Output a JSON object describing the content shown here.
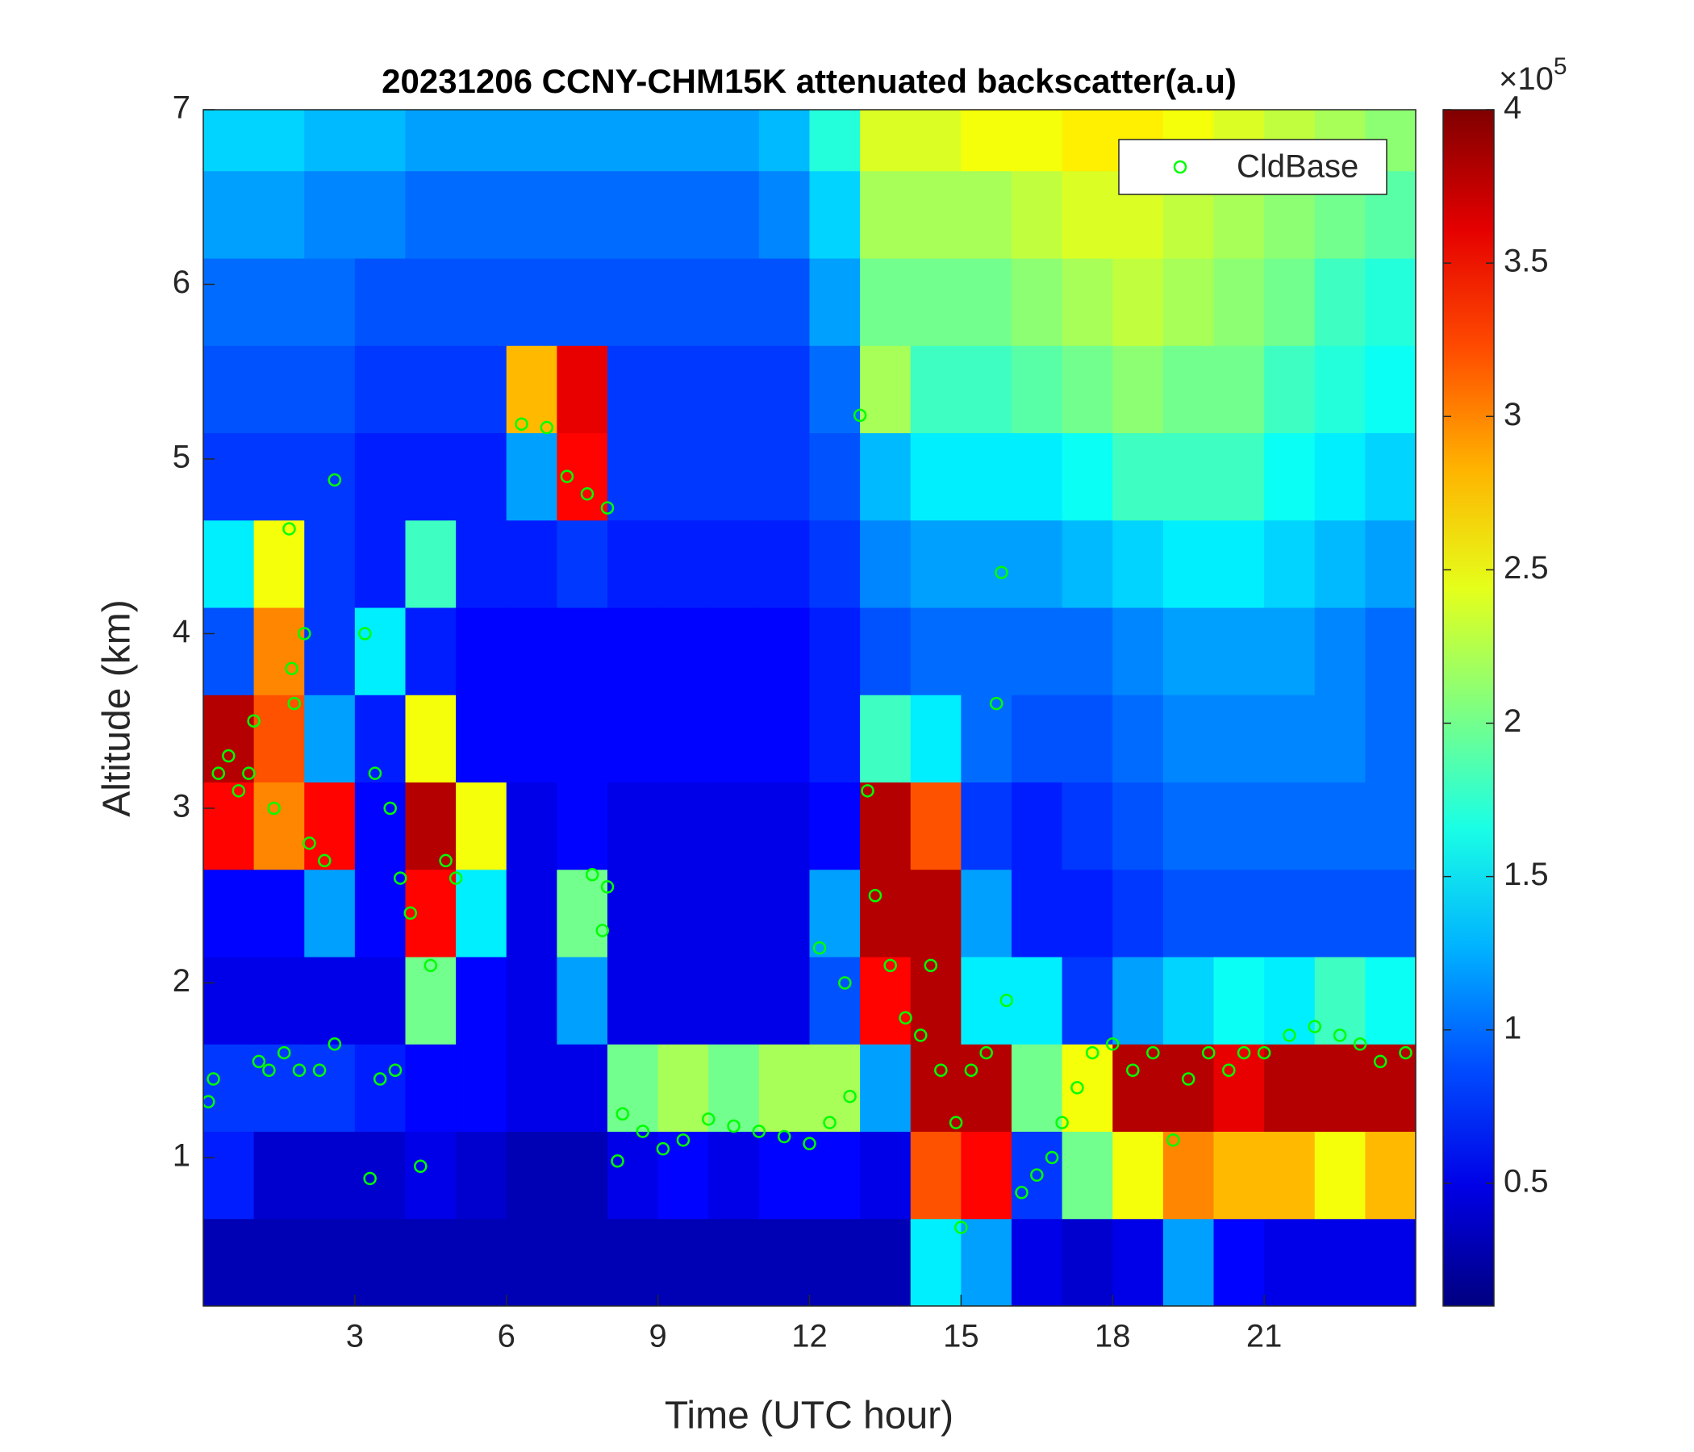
{
  "chart_data": {
    "type": "heatmap",
    "title": "20231206 CCNY-CHM15K attenuated backscatter(a.u)",
    "xlabel": "Time (UTC hour)",
    "ylabel": "Altitude (km)",
    "xlim": [
      0,
      24
    ],
    "ylim": [
      0.15,
      7
    ],
    "xticks": [
      3,
      6,
      9,
      12,
      15,
      18,
      21
    ],
    "yticks": [
      1,
      2,
      3,
      4,
      5,
      6,
      7
    ],
    "colormap": "jet",
    "colorbar": {
      "lim": [
        0.1,
        4
      ],
      "ticks": [
        0.5,
        1,
        1.5,
        2,
        2.5,
        3,
        3.5,
        4
      ],
      "multiplier_label": "×10",
      "multiplier_exponent": "5"
    },
    "x": [
      0.5,
      1.5,
      2.5,
      3.5,
      4.5,
      5.5,
      6.5,
      7.5,
      8.5,
      9.5,
      10.5,
      11.5,
      12.5,
      13.5,
      14.5,
      15.5,
      16.5,
      17.5,
      18.5,
      19.5,
      20.5,
      21.5,
      22.5,
      23.5
    ],
    "y": [
      0.4,
      0.9,
      1.4,
      1.9,
      2.4,
      2.9,
      3.4,
      3.9,
      4.4,
      4.9,
      5.4,
      5.9,
      6.4,
      6.9
    ],
    "z": [
      [
        0.3,
        0.3,
        0.3,
        0.3,
        0.3,
        0.3,
        0.3,
        0.3,
        0.3,
        0.3,
        0.3,
        0.3,
        0.3,
        0.3,
        1.5,
        1.2,
        0.5,
        0.4,
        0.5,
        1.2,
        0.6,
        0.5,
        0.5,
        0.5
      ],
      [
        0.7,
        0.4,
        0.4,
        0.4,
        0.5,
        0.4,
        0.3,
        0.3,
        0.5,
        0.6,
        0.5,
        0.6,
        0.6,
        0.5,
        3.2,
        3.5,
        0.8,
        2.0,
        2.5,
        3.0,
        2.8,
        2.8,
        2.5,
        2.8
      ],
      [
        0.8,
        0.8,
        0.8,
        0.7,
        0.6,
        0.6,
        0.5,
        0.5,
        2.0,
        2.2,
        2.0,
        2.2,
        2.2,
        1.2,
        3.8,
        3.8,
        2.0,
        2.5,
        3.8,
        3.8,
        3.6,
        3.8,
        3.8,
        3.8
      ],
      [
        0.5,
        0.5,
        0.5,
        0.5,
        2.0,
        0.6,
        0.5,
        1.2,
        0.5,
        0.5,
        0.5,
        0.5,
        0.9,
        3.5,
        3.8,
        1.5,
        1.5,
        0.8,
        1.2,
        1.4,
        1.6,
        1.5,
        1.8,
        1.6
      ],
      [
        0.6,
        0.6,
        1.2,
        0.6,
        3.5,
        1.5,
        0.5,
        2.0,
        0.5,
        0.5,
        0.5,
        0.5,
        1.2,
        3.8,
        3.8,
        1.2,
        0.7,
        0.7,
        0.8,
        0.9,
        0.9,
        0.9,
        0.9,
        0.9
      ],
      [
        3.5,
        3.0,
        3.5,
        0.6,
        3.8,
        2.5,
        0.5,
        0.6,
        0.5,
        0.5,
        0.5,
        0.5,
        0.6,
        3.8,
        3.2,
        0.8,
        0.7,
        0.8,
        0.9,
        1.0,
        1.0,
        1.0,
        1.0,
        1.0
      ],
      [
        3.8,
        3.2,
        1.2,
        0.7,
        2.5,
        0.6,
        0.6,
        0.6,
        0.6,
        0.6,
        0.6,
        0.6,
        0.7,
        1.8,
        1.5,
        1.0,
        0.9,
        0.9,
        1.0,
        1.1,
        1.1,
        1.1,
        1.1,
        1.0
      ],
      [
        0.9,
        3.0,
        0.8,
        1.5,
        0.7,
        0.6,
        0.6,
        0.6,
        0.6,
        0.6,
        0.6,
        0.6,
        0.7,
        0.9,
        1.0,
        1.0,
        1.0,
        1.0,
        1.1,
        1.2,
        1.2,
        1.2,
        1.1,
        1.0
      ],
      [
        1.5,
        2.5,
        0.8,
        0.7,
        1.8,
        0.7,
        0.7,
        0.8,
        0.7,
        0.7,
        0.7,
        0.7,
        0.8,
        1.1,
        1.2,
        1.2,
        1.2,
        1.3,
        1.4,
        1.5,
        1.5,
        1.4,
        1.3,
        1.2
      ],
      [
        0.8,
        0.8,
        0.8,
        0.7,
        0.7,
        0.7,
        1.2,
        3.5,
        0.8,
        0.8,
        0.8,
        0.8,
        0.9,
        1.3,
        1.5,
        1.5,
        1.5,
        1.6,
        1.8,
        1.8,
        1.8,
        1.6,
        1.5,
        1.4
      ],
      [
        0.9,
        0.9,
        0.9,
        0.8,
        0.8,
        0.8,
        2.8,
        3.6,
        0.8,
        0.8,
        0.8,
        0.8,
        1.0,
        2.2,
        1.8,
        1.8,
        1.9,
        2.0,
        2.1,
        2.0,
        2.0,
        1.8,
        1.7,
        1.6
      ],
      [
        1.0,
        1.0,
        1.0,
        0.9,
        0.9,
        0.9,
        0.9,
        0.9,
        0.9,
        0.9,
        0.9,
        0.9,
        1.2,
        2.0,
        2.0,
        2.0,
        2.1,
        2.2,
        2.3,
        2.2,
        2.1,
        2.0,
        1.8,
        1.7
      ],
      [
        1.2,
        1.2,
        1.1,
        1.1,
        1.0,
        1.0,
        1.0,
        1.0,
        1.0,
        1.0,
        1.0,
        1.1,
        1.4,
        2.2,
        2.2,
        2.2,
        2.3,
        2.4,
        2.4,
        2.3,
        2.2,
        2.1,
        2.0,
        1.9
      ],
      [
        1.4,
        1.4,
        1.3,
        1.3,
        1.2,
        1.2,
        1.2,
        1.2,
        1.2,
        1.2,
        1.2,
        1.3,
        1.7,
        2.4,
        2.4,
        2.5,
        2.5,
        2.6,
        2.6,
        2.5,
        2.4,
        2.3,
        2.2,
        2.1
      ]
    ],
    "series": [
      {
        "name": "CldBase",
        "color": "#00ff00",
        "x": [
          0.1,
          0.2,
          0.3,
          0.5,
          0.7,
          0.9,
          1.0,
          1.1,
          1.3,
          1.4,
          1.6,
          1.7,
          1.75,
          1.8,
          1.9,
          2.0,
          2.1,
          2.3,
          2.4,
          2.6,
          2.6,
          3.2,
          3.3,
          3.4,
          3.5,
          3.7,
          3.8,
          3.9,
          4.1,
          4.3,
          4.5,
          4.8,
          5.0,
          6.3,
          6.8,
          7.2,
          7.6,
          7.7,
          8.0,
          8.0,
          7.9,
          8.2,
          8.3,
          8.7,
          9.1,
          9.5,
          10.0,
          10.5,
          11.0,
          11.5,
          12.0,
          12.4,
          12.8,
          12.2,
          12.7,
          13.0,
          13.15,
          13.3,
          13.6,
          13.9,
          14.2,
          14.4,
          14.6,
          14.9,
          15.0,
          15.2,
          15.5,
          15.7,
          15.8,
          15.9,
          16.2,
          16.5,
          16.8,
          17.0,
          17.3,
          17.6,
          18.0,
          18.4,
          18.8,
          19.2,
          19.5,
          19.9,
          20.3,
          20.6,
          21.0,
          21.5,
          22.0,
          22.5,
          22.9,
          23.3,
          23.8
        ],
        "y": [
          1.32,
          1.45,
          3.2,
          3.3,
          3.1,
          3.2,
          3.5,
          1.55,
          1.5,
          3.0,
          1.6,
          4.6,
          3.8,
          3.6,
          1.5,
          4.0,
          2.8,
          1.5,
          2.7,
          1.65,
          4.88,
          4.0,
          0.88,
          3.2,
          1.45,
          3.0,
          1.5,
          2.6,
          2.4,
          0.95,
          2.1,
          2.7,
          2.6,
          5.2,
          5.18,
          4.9,
          4.8,
          2.62,
          2.55,
          4.72,
          2.3,
          0.98,
          1.25,
          1.15,
          1.05,
          1.1,
          1.22,
          1.18,
          1.15,
          1.12,
          1.08,
          1.2,
          1.35,
          2.2,
          2.0,
          5.25,
          3.1,
          2.5,
          2.1,
          1.8,
          1.7,
          2.1,
          1.5,
          1.2,
          0.6,
          1.5,
          1.6,
          3.6,
          4.35,
          1.9,
          0.8,
          0.9,
          1.0,
          1.2,
          1.4,
          1.6,
          1.65,
          1.5,
          1.6,
          1.1,
          1.45,
          1.6,
          1.5,
          1.6,
          1.6,
          1.7,
          1.75,
          1.7,
          1.65,
          1.55,
          1.6
        ]
      }
    ],
    "legend": "northeast"
  }
}
